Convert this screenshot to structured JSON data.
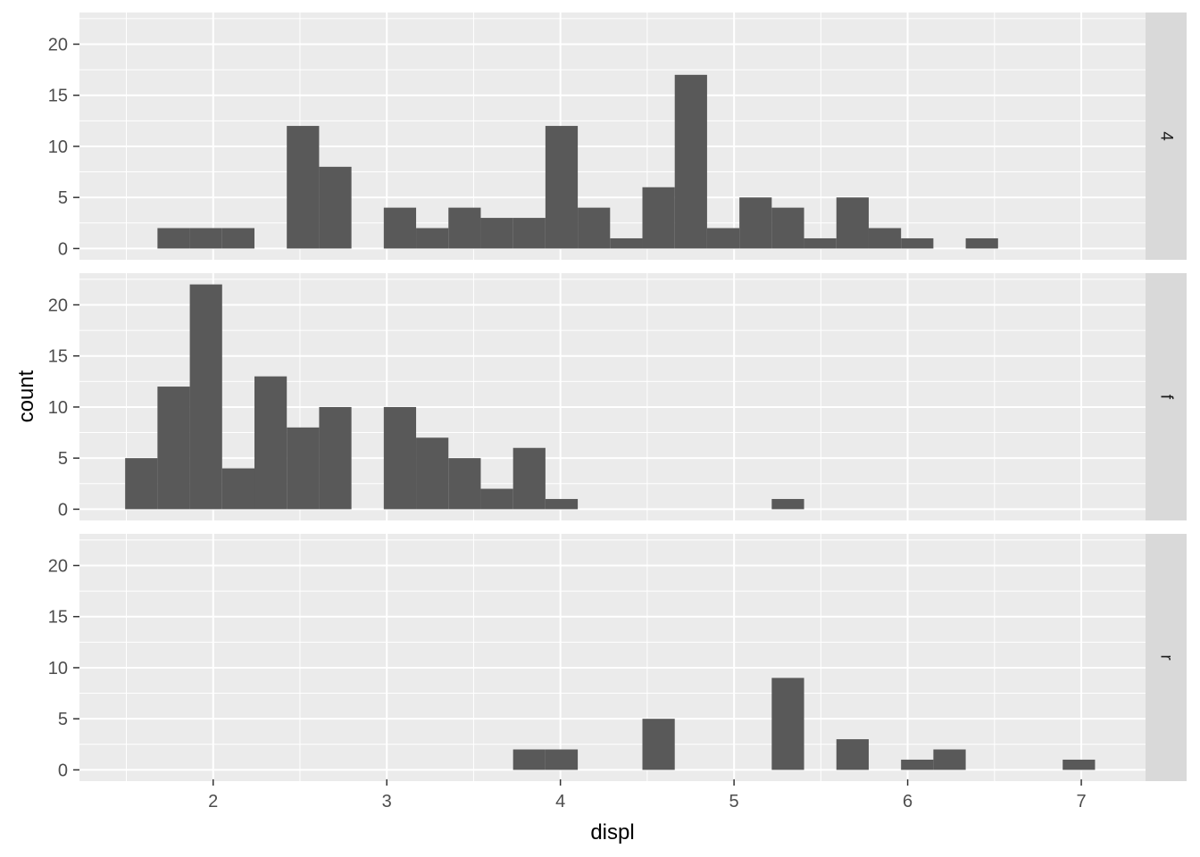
{
  "chart_data": {
    "type": "bar",
    "subtype": "faceted-histogram",
    "xlabel": "displ",
    "ylabel": "count",
    "xlim": [
      1.23,
      7.37
    ],
    "ylim": [
      -1.1,
      23.1
    ],
    "x_ticks": [
      2,
      3,
      4,
      5,
      6,
      7
    ],
    "y_ticks": [
      0,
      5,
      10,
      15,
      20
    ],
    "bin_width": 0.1862,
    "bin_origin": 1.4931,
    "grid": true,
    "facets": [
      {
        "strip_label": "4",
        "bins": [
          {
            "start": 1.6793,
            "count": 2
          },
          {
            "start": 1.8655,
            "count": 2
          },
          {
            "start": 2.0517,
            "count": 2
          },
          {
            "start": 2.4241,
            "count": 12
          },
          {
            "start": 2.6103,
            "count": 8
          },
          {
            "start": 2.9827,
            "count": 4
          },
          {
            "start": 3.1689,
            "count": 2
          },
          {
            "start": 3.3551,
            "count": 4
          },
          {
            "start": 3.5413,
            "count": 3
          },
          {
            "start": 3.7275,
            "count": 3
          },
          {
            "start": 3.9137,
            "count": 12
          },
          {
            "start": 4.0999,
            "count": 4
          },
          {
            "start": 4.2861,
            "count": 1
          },
          {
            "start": 4.4723,
            "count": 6
          },
          {
            "start": 4.6585,
            "count": 17
          },
          {
            "start": 4.8447,
            "count": 2
          },
          {
            "start": 5.0309,
            "count": 5
          },
          {
            "start": 5.2171,
            "count": 4
          },
          {
            "start": 5.4033,
            "count": 1
          },
          {
            "start": 5.5895,
            "count": 5
          },
          {
            "start": 5.7757,
            "count": 2
          },
          {
            "start": 5.9619,
            "count": 1
          },
          {
            "start": 6.3343,
            "count": 1
          }
        ]
      },
      {
        "strip_label": "f",
        "bins": [
          {
            "start": 1.4931,
            "count": 5
          },
          {
            "start": 1.6793,
            "count": 12
          },
          {
            "start": 1.8655,
            "count": 22
          },
          {
            "start": 2.0517,
            "count": 4
          },
          {
            "start": 2.2379,
            "count": 13
          },
          {
            "start": 2.4241,
            "count": 8
          },
          {
            "start": 2.6103,
            "count": 10
          },
          {
            "start": 2.9827,
            "count": 10
          },
          {
            "start": 3.1689,
            "count": 7
          },
          {
            "start": 3.3551,
            "count": 5
          },
          {
            "start": 3.5413,
            "count": 2
          },
          {
            "start": 3.7275,
            "count": 6
          },
          {
            "start": 3.9137,
            "count": 1
          },
          {
            "start": 5.2171,
            "count": 1
          }
        ]
      },
      {
        "strip_label": "r",
        "bins": [
          {
            "start": 3.7275,
            "count": 2
          },
          {
            "start": 3.9137,
            "count": 2
          },
          {
            "start": 4.4723,
            "count": 5
          },
          {
            "start": 5.2171,
            "count": 9
          },
          {
            "start": 5.5895,
            "count": 3
          },
          {
            "start": 5.9619,
            "count": 1
          },
          {
            "start": 6.1481,
            "count": 2
          },
          {
            "start": 6.8929,
            "count": 1
          }
        ]
      }
    ],
    "colors": {
      "panel_background": "#ebebeb",
      "grid": "#ffffff",
      "bar_fill": "#595959",
      "strip_background": "#d9d9d9",
      "tick_label": "#4d4d4d",
      "axis_title": "#000000"
    }
  }
}
